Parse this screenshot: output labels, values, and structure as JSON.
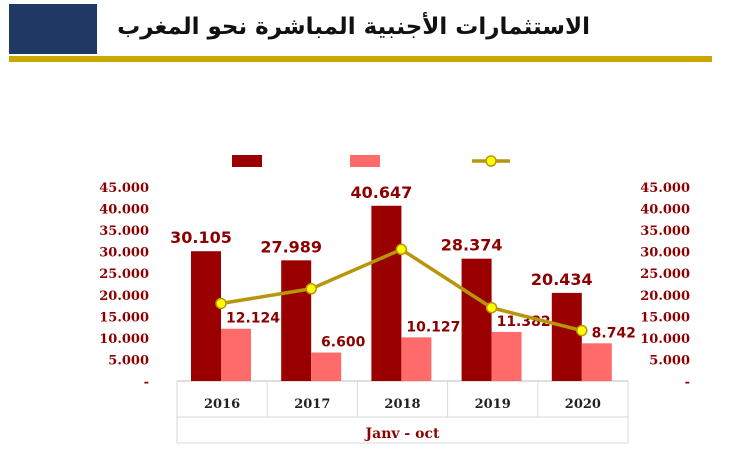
{
  "header": {
    "title": "الاستثمارات الأجنبية المباشرة نحو المغرب",
    "accent_color": "#c9a700",
    "block_color": "#1f3864"
  },
  "chart_data": {
    "type": "bar",
    "categories": [
      "2016",
      "2017",
      "2018",
      "2019",
      "2020"
    ],
    "xlabel": "Janv - oct",
    "ylim": [
      0,
      45000
    ],
    "y_ticks": [
      "-",
      "5.000",
      "10.000",
      "15.000",
      "20.000",
      "25.000",
      "30.000",
      "35.000",
      "40.000",
      "45.000"
    ],
    "legend_position": "top",
    "series": [
      {
        "kind": "bar",
        "color": "#9b0000",
        "values": [
          30105,
          27989,
          40647,
          28374,
          20434
        ],
        "labels": [
          "30.105",
          "27.989",
          "40.647",
          "28.374",
          "20.434"
        ]
      },
      {
        "kind": "bar",
        "color": "#ff6b6b",
        "values": [
          12124,
          6600,
          10127,
          11382,
          8742
        ],
        "labels": [
          "12.124",
          "6.600",
          "10.127",
          "11.382",
          "8.742"
        ]
      },
      {
        "kind": "line",
        "color": "#b8960c",
        "marker_color": "#ffff00",
        "values": [
          17981,
          21389,
          30520,
          16992,
          11692
        ]
      }
    ]
  }
}
